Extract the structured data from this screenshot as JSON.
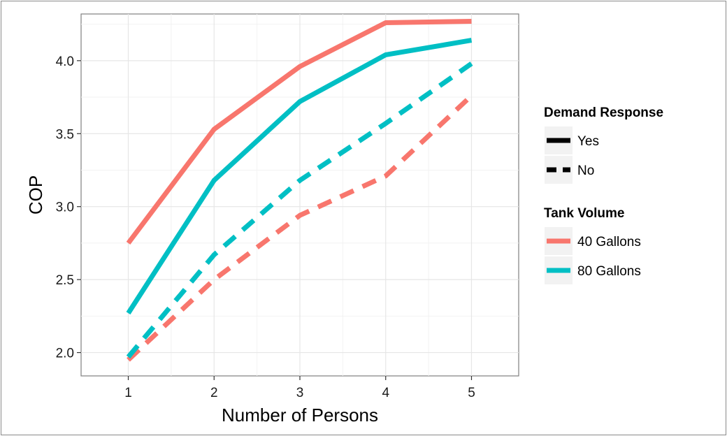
{
  "chart_data": {
    "type": "line",
    "xlabel": "Number of Persons",
    "ylabel": "COP",
    "x": [
      1,
      2,
      3,
      4,
      5
    ],
    "xlim": [
      0.45,
      5.55
    ],
    "ylim": [
      1.84,
      4.32
    ],
    "xticks": [
      "1",
      "2",
      "3",
      "4",
      "5"
    ],
    "yticks": [
      {
        "value": 2.0,
        "label": "2.0"
      },
      {
        "value": 2.5,
        "label": "2.5"
      },
      {
        "value": 3.0,
        "label": "3.0"
      },
      {
        "value": 3.5,
        "label": "3.5"
      },
      {
        "value": 4.0,
        "label": "4.0"
      }
    ],
    "grid": true,
    "legend_position": "right",
    "series": [
      {
        "tank": "40 Gallons",
        "dr": "Yes",
        "color": "#F8766D",
        "dash": "solid",
        "values": [
          2.75,
          3.53,
          3.96,
          4.26,
          4.27
        ]
      },
      {
        "tank": "80 Gallons",
        "dr": "Yes",
        "color": "#00BFC4",
        "dash": "solid",
        "values": [
          2.27,
          3.18,
          3.72,
          4.04,
          4.14
        ]
      },
      {
        "tank": "40 Gallons",
        "dr": "No",
        "color": "#F8766D",
        "dash": "dashed",
        "values": [
          1.95,
          2.5,
          2.94,
          3.21,
          3.76
        ]
      },
      {
        "tank": "80 Gallons",
        "dr": "No",
        "color": "#00BFC4",
        "dash": "dashed",
        "values": [
          1.97,
          2.67,
          3.18,
          3.57,
          3.98
        ]
      }
    ],
    "legends": [
      {
        "title": "Demand Response",
        "items": [
          {
            "label": "Yes",
            "color": "#000000",
            "dash": "solid"
          },
          {
            "label": "No",
            "color": "#000000",
            "dash": "dashed"
          }
        ]
      },
      {
        "title": "Tank Volume",
        "items": [
          {
            "label": "40 Gallons",
            "color": "#F8766D",
            "dash": "solid"
          },
          {
            "label": "80 Gallons",
            "color": "#00BFC4",
            "dash": "solid"
          }
        ]
      }
    ]
  }
}
